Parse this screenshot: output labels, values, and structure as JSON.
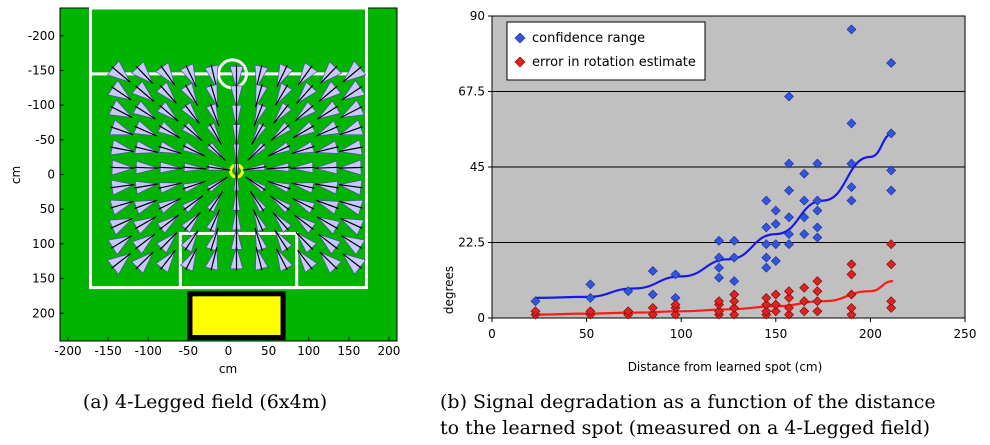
{
  "figure_a": {
    "caption": "(a) 4-Legged field (6x4m)",
    "xlabel": "cm",
    "ylabel": "cm",
    "x_ticks": [
      "-200",
      "-150",
      "-100",
      "-50",
      "0",
      "50",
      "100",
      "150",
      "200"
    ],
    "y_ticks": [
      "-200",
      "-150",
      "-100",
      "-50",
      "0",
      "50",
      "100",
      "150",
      "200"
    ],
    "x_range": [
      -210,
      210
    ],
    "y_range": [
      -240,
      240
    ],
    "field_color": "#00b400",
    "goal_color": "#ffff00",
    "marker_color": "#ffff00",
    "arrow_grid_x": [
      -140,
      -110,
      -80,
      -50,
      -20,
      10,
      40,
      70,
      100,
      130,
      160
    ],
    "arrow_grid_y": [
      -150,
      -122,
      -94,
      -66,
      -38,
      -10,
      18,
      46,
      74,
      102,
      130
    ]
  },
  "chart_data": {
    "type": "scatter",
    "caption_line1": "(b) Signal degradation as a function of the distance",
    "caption_line2": "to the learned spot (measured on a 4-Legged field)",
    "xlabel": "Distance from learned spot (cm)",
    "ylabel": "degrees",
    "xlim": [
      0,
      250
    ],
    "ylim": [
      0,
      90
    ],
    "x_ticks": [
      "0",
      "50",
      "100",
      "150",
      "200",
      "250"
    ],
    "y_ticks": [
      "0",
      "22.5",
      "45",
      "67.5",
      "90"
    ],
    "grid": true,
    "legend_position": "top-left",
    "series": [
      {
        "name": "confidence range",
        "color": "#3355dd",
        "marker": "diamond",
        "points": [
          [
            23,
            5
          ],
          [
            52,
            10
          ],
          [
            52,
            6
          ],
          [
            72,
            8
          ],
          [
            85,
            14
          ],
          [
            85,
            7
          ],
          [
            97,
            13
          ],
          [
            97,
            6
          ],
          [
            120,
            23
          ],
          [
            120,
            18
          ],
          [
            120,
            15
          ],
          [
            120,
            12
          ],
          [
            128,
            23
          ],
          [
            128,
            18
          ],
          [
            128,
            11
          ],
          [
            145,
            35
          ],
          [
            145,
            27
          ],
          [
            145,
            22
          ],
          [
            145,
            18
          ],
          [
            145,
            15
          ],
          [
            150,
            32
          ],
          [
            150,
            28
          ],
          [
            150,
            22
          ],
          [
            150,
            17
          ],
          [
            157,
            66
          ],
          [
            157,
            46
          ],
          [
            157,
            38
          ],
          [
            157,
            30
          ],
          [
            157,
            25
          ],
          [
            157,
            22
          ],
          [
            165,
            43
          ],
          [
            165,
            35
          ],
          [
            165,
            30
          ],
          [
            165,
            25
          ],
          [
            172,
            46
          ],
          [
            172,
            35
          ],
          [
            172,
            32
          ],
          [
            172,
            27
          ],
          [
            172,
            24
          ],
          [
            190,
            86
          ],
          [
            190,
            58
          ],
          [
            190,
            46
          ],
          [
            190,
            39
          ],
          [
            190,
            35
          ],
          [
            211,
            76
          ],
          [
            211,
            55
          ],
          [
            211,
            44
          ],
          [
            211,
            38
          ]
        ]
      },
      {
        "name": "error in rotation estimate",
        "color": "#dd2222",
        "marker": "diamond",
        "points": [
          [
            23,
            1
          ],
          [
            23,
            2
          ],
          [
            52,
            1
          ],
          [
            52,
            2
          ],
          [
            72,
            1
          ],
          [
            72,
            2
          ],
          [
            85,
            1
          ],
          [
            85,
            3
          ],
          [
            97,
            1
          ],
          [
            97,
            3
          ],
          [
            97,
            4
          ],
          [
            120,
            1
          ],
          [
            120,
            2
          ],
          [
            120,
            4
          ],
          [
            120,
            5
          ],
          [
            128,
            1
          ],
          [
            128,
            3
          ],
          [
            128,
            5
          ],
          [
            128,
            7
          ],
          [
            145,
            1
          ],
          [
            145,
            2
          ],
          [
            145,
            4
          ],
          [
            145,
            6
          ],
          [
            150,
            2
          ],
          [
            150,
            4
          ],
          [
            150,
            7
          ],
          [
            157,
            1
          ],
          [
            157,
            3
          ],
          [
            157,
            6
          ],
          [
            157,
            8
          ],
          [
            165,
            2
          ],
          [
            165,
            5
          ],
          [
            165,
            9
          ],
          [
            172,
            2
          ],
          [
            172,
            5
          ],
          [
            172,
            8
          ],
          [
            172,
            11
          ],
          [
            190,
            1
          ],
          [
            190,
            3
          ],
          [
            190,
            7
          ],
          [
            190,
            13
          ],
          [
            190,
            16
          ],
          [
            211,
            3
          ],
          [
            211,
            5
          ],
          [
            211,
            16
          ],
          [
            211,
            22
          ]
        ]
      }
    ],
    "trendlines": [
      {
        "series": "confidence range",
        "color": "#1a1ae6",
        "x": [
          23,
          50,
          75,
          100,
          125,
          150,
          175,
          200,
          212
        ],
        "y": [
          6,
          6.3,
          8.8,
          12.4,
          17.5,
          25,
          35,
          48,
          55
        ]
      },
      {
        "series": "error in rotation estimate",
        "color": "#ff1a1a",
        "x": [
          23,
          50,
          75,
          100,
          125,
          150,
          175,
          200,
          212
        ],
        "y": [
          1,
          1.3,
          1.6,
          2.0,
          2.6,
          3.5,
          5.0,
          8.0,
          11
        ]
      }
    ]
  }
}
